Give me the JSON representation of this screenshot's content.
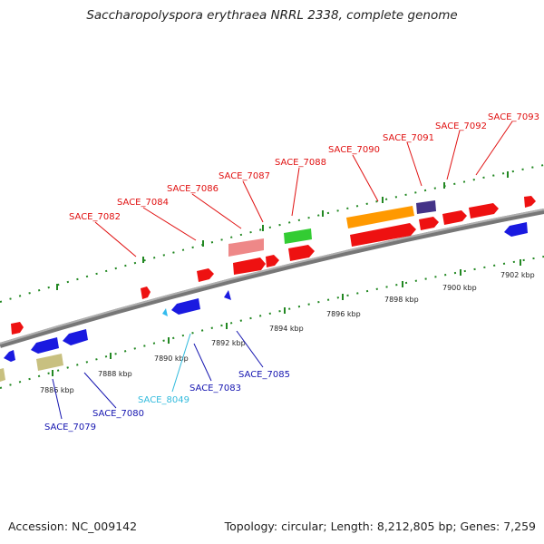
{
  "title": "Saccharopolyspora erythraea NRRL 2338, complete genome",
  "footer": {
    "accession": "Accession: NC_009142",
    "summary": "Topology: circular; Length: 8,212,805 bp; Genes: 7,259"
  },
  "scale_labels": [
    "7886 kbp",
    "7888 kbp",
    "7890 kbp",
    "7892 kbp",
    "7894 kbp",
    "7896 kbp",
    "7898 kbp",
    "7900 kbp",
    "7902 kbp"
  ],
  "gene_labels": {
    "top": [
      "SACE_7082",
      "SACE_7084",
      "SACE_7086",
      "SACE_7087",
      "SACE_7088",
      "SACE_7090",
      "SACE_7091",
      "SACE_7092",
      "SACE_7093"
    ],
    "bottom": [
      "SACE_7079",
      "SACE_7080",
      "SACE_8049",
      "SACE_7083",
      "SACE_7085"
    ]
  },
  "colors": {
    "forward_label": "#e01010",
    "reverse_label": "#1515b0",
    "rna_label": "#33bbdd",
    "forward_gene": "#ee1111",
    "reverse_gene": "#1a1ae0",
    "pink_gene": "#ee8888",
    "green_gene": "#33cc33",
    "orange_gene": "#ff9900",
    "purple_gene": "#443388",
    "olive_gene": "#c8c080",
    "cyan_gene": "#33bbee",
    "backbone": "#888888",
    "dots": "#228822"
  }
}
